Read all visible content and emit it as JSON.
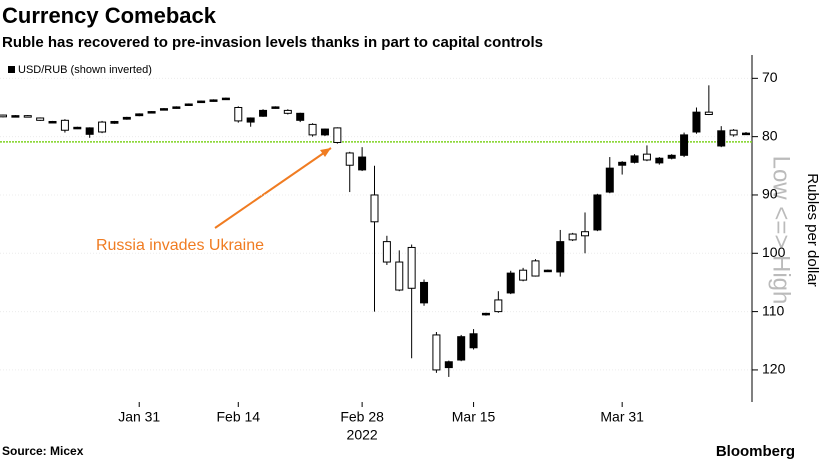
{
  "chart_data": {
    "type": "candlestick",
    "title": "Currency Comeback",
    "subtitle": "Ruble has recovered to pre-invasion levels thanks in part to capital controls",
    "legend": "USD/RUB (shown inverted)",
    "y_label": "Rubles per dollar",
    "direction_note": "Low <=> High",
    "annotation": "Russia invades Ukraine",
    "source": "Source: Micex",
    "brand": "Bloomberg",
    "year_label": "2022",
    "categories": [
      null,
      null,
      null,
      null,
      null,
      null,
      null,
      null,
      null,
      null,
      null,
      "Jan 31",
      null,
      null,
      null,
      null,
      null,
      null,
      null,
      "Feb 14",
      null,
      null,
      null,
      null,
      null,
      null,
      null,
      null,
      null,
      "Feb 28",
      null,
      null,
      null,
      null,
      null,
      null,
      null,
      null,
      "Mar 15",
      null,
      null,
      null,
      null,
      null,
      null,
      null,
      null,
      null,
      null,
      null,
      "Mar 31",
      null,
      null,
      null,
      null,
      null,
      null,
      null,
      null,
      null,
      null
    ],
    "open": [
      76.3,
      76.6,
      76.4,
      76.8,
      77.5,
      77.2,
      78.6,
      79.6,
      77.5,
      77.7,
      77.0,
      76.4,
      75.9,
      75.4,
      75.1,
      74.6,
      74.1,
      73.9,
      73.6,
      75.0,
      77.5,
      76.5,
      75.1,
      75.5,
      77.2,
      77.9,
      79.7,
      78.5,
      82.8,
      85.7,
      90.0,
      98.0,
      101.5,
      99.0,
      108.5,
      114.0,
      119.6,
      118.3,
      116.2,
      110.5,
      108.0,
      106.8,
      102.9,
      101.3,
      103.1,
      103.2,
      96.7,
      96.3,
      96.0,
      89.5,
      84.9,
      84.4,
      83.0,
      84.5,
      83.7,
      83.2,
      79.2,
      75.8,
      81.6,
      78.9,
      79.6
    ],
    "high": [
      76.7,
      76.7,
      76.7,
      77.3,
      77.6,
      79.3,
      78.7,
      80.2,
      79.4,
      77.8,
      77.1,
      76.5,
      76.0,
      75.5,
      75.2,
      74.7,
      74.2,
      74.0,
      73.7,
      77.6,
      78.3,
      76.6,
      75.2,
      76.2,
      77.5,
      80.0,
      79.9,
      81.2,
      89.5,
      85.9,
      110.0,
      102.0,
      106.5,
      118.0,
      109.0,
      120.5,
      121.2,
      118.5,
      116.5,
      110.7,
      110.2,
      107.0,
      104.8,
      104.0,
      103.2,
      104.0,
      97.9,
      100.0,
      96.2,
      89.7,
      86.5,
      84.6,
      84.2,
      84.8,
      83.9,
      83.5,
      79.5,
      76.3,
      81.8,
      80.0,
      79.7
    ],
    "low": [
      76.2,
      76.3,
      76.3,
      76.7,
      77.3,
      77.0,
      78.3,
      78.4,
      77.3,
      77.3,
      76.6,
      76.0,
      75.6,
      75.1,
      74.8,
      74.3,
      73.8,
      73.6,
      73.3,
      74.8,
      76.7,
      75.3,
      74.8,
      75.3,
      75.9,
      77.7,
      78.6,
      78.4,
      82.6,
      81.8,
      85.0,
      97.0,
      99.5,
      98.5,
      104.5,
      113.5,
      118.4,
      114.0,
      113.0,
      110.2,
      106.5,
      103.0,
      102.5,
      101.0,
      102.8,
      96.0,
      96.5,
      93.0,
      89.8,
      83.5,
      84.2,
      83.0,
      81.5,
      83.5,
      83.0,
      79.3,
      75.0,
      71.2,
      78.2,
      78.7,
      79.2
    ],
    "close": [
      76.6,
      76.4,
      76.6,
      77.2,
      77.4,
      78.9,
      78.4,
      78.5,
      79.2,
      77.4,
      76.7,
      76.1,
      75.7,
      75.2,
      74.9,
      74.4,
      73.9,
      73.7,
      73.4,
      77.3,
      76.8,
      75.5,
      74.9,
      76.0,
      76.0,
      79.7,
      78.7,
      81.0,
      84.9,
      83.5,
      94.6,
      101.5,
      106.3,
      106.0,
      105.0,
      120.0,
      118.6,
      114.3,
      113.8,
      110.3,
      110.0,
      103.4,
      104.6,
      103.9,
      102.9,
      98.0,
      97.7,
      97.0,
      90.0,
      85.4,
      84.4,
      83.3,
      84.0,
      83.7,
      83.2,
      79.7,
      75.8,
      76.2,
      79.0,
      79.7,
      79.4
    ],
    "ylim": [
      66,
      125.5
    ],
    "inverted": true,
    "yticks": [
      70,
      80,
      90,
      100,
      110,
      120
    ],
    "reference_line": {
      "value": 80.9,
      "color": "#7ed321"
    }
  }
}
